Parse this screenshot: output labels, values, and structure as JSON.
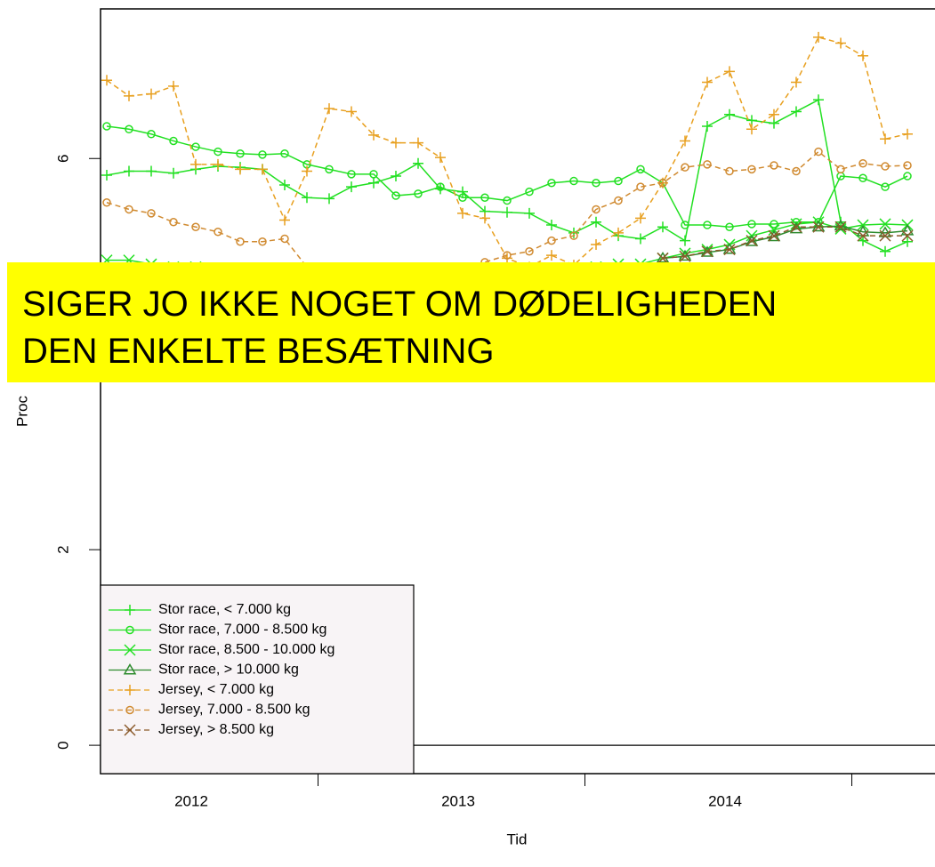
{
  "chart_data": {
    "type": "line",
    "xlabel": "Tid",
    "ylabel": "Proc",
    "annotation": [
      "SIGER JO IKKE NOGET OM DØDELIGHEDEN",
      "DEN ENKELTE BESÆTNING"
    ],
    "categories": [
      null,
      null,
      null,
      null,
      null,
      null,
      null,
      null,
      null,
      null,
      null,
      null,
      null,
      null,
      null,
      null,
      null,
      null,
      null,
      null,
      null,
      null,
      null,
      null,
      null,
      null,
      null,
      null,
      null,
      null,
      null,
      null,
      null,
      null,
      null,
      null,
      null
    ],
    "xtick_labels": [
      "2012",
      "2013",
      "2014"
    ],
    "ylim": [
      -0.29,
      7.53
    ],
    "yticks": [
      0,
      2,
      6
    ],
    "series": [
      {
        "name": "Stor race, < 7.000 kg",
        "color": "#22e022",
        "marker": "plus",
        "linestyle": "solid",
        "values": [
          5.83,
          5.87,
          5.87,
          5.85,
          5.89,
          5.92,
          5.91,
          5.89,
          5.73,
          5.6,
          5.59,
          5.71,
          5.75,
          5.82,
          5.95,
          5.69,
          5.66,
          5.46,
          5.45,
          5.44,
          5.32,
          5.24,
          5.35,
          5.21,
          5.18,
          5.3,
          5.16,
          6.33,
          6.45,
          6.39,
          6.36,
          6.48,
          6.6,
          5.35,
          5.16,
          5.05,
          5.15
        ]
      },
      {
        "name": "Stor race, 7.000 - 8.500 kg",
        "color": "#22e022",
        "marker": "circle",
        "linestyle": "solid",
        "values": [
          6.33,
          6.3,
          6.25,
          6.18,
          6.12,
          6.07,
          6.05,
          6.04,
          6.05,
          5.94,
          5.89,
          5.84,
          5.84,
          5.62,
          5.64,
          5.71,
          5.6,
          5.6,
          5.57,
          5.66,
          5.75,
          5.77,
          5.75,
          5.77,
          5.89,
          5.75,
          5.32,
          5.32,
          5.3,
          5.33,
          5.33,
          5.35,
          5.35,
          5.82,
          5.8,
          5.71,
          5.82
        ]
      },
      {
        "name": "Stor race, 8.500 - 10.000 kg",
        "color": "#22e022",
        "marker": "cross",
        "linestyle": "solid",
        "values": [
          4.96,
          4.96,
          4.92,
          4.89,
          4.89,
          4.87,
          4.85,
          4.82,
          4.8,
          4.75,
          4.73,
          4.71,
          4.69,
          4.66,
          4.66,
          4.69,
          4.71,
          4.73,
          4.75,
          4.76,
          4.8,
          4.85,
          4.89,
          4.92,
          4.92,
          4.98,
          5.03,
          5.07,
          5.12,
          5.21,
          5.27,
          5.33,
          5.35,
          5.28,
          5.32,
          5.33,
          5.32
        ]
      },
      {
        "name": "Stor race, > 10.000 kg",
        "color": "#2e8b2e",
        "marker": "triangle",
        "linestyle": "solid",
        "values": [
          null,
          null,
          null,
          null,
          null,
          null,
          null,
          null,
          null,
          null,
          null,
          null,
          null,
          null,
          null,
          null,
          null,
          null,
          null,
          null,
          null,
          null,
          null,
          null,
          null,
          4.98,
          5.0,
          5.04,
          5.07,
          5.15,
          5.2,
          5.28,
          5.3,
          5.31,
          5.25,
          5.24,
          5.26
        ]
      },
      {
        "name": "Jersey, < 7.000 kg",
        "color": "#e8a020",
        "marker": "plus",
        "linestyle": "dashed",
        "values": [
          6.8,
          6.64,
          6.66,
          6.74,
          5.94,
          5.94,
          5.89,
          5.89,
          5.37,
          5.87,
          6.51,
          6.48,
          6.24,
          6.16,
          6.16,
          6.01,
          5.44,
          5.39,
          4.98,
          4.89,
          5.01,
          4.91,
          5.12,
          5.24,
          5.39,
          5.75,
          6.18,
          6.78,
          6.89,
          6.3,
          6.45,
          6.78,
          7.24,
          7.18,
          7.05,
          6.2,
          6.25
        ]
      },
      {
        "name": "Jersey, 7.000 - 8.500 kg",
        "color": "#d08a30",
        "marker": "circle",
        "linestyle": "dashed",
        "values": [
          5.55,
          5.48,
          5.44,
          5.35,
          5.3,
          5.25,
          5.15,
          5.15,
          5.18,
          4.89,
          4.8,
          4.71,
          4.62,
          4.62,
          4.71,
          4.8,
          4.89,
          4.94,
          5.01,
          5.05,
          5.16,
          5.21,
          5.48,
          5.57,
          5.71,
          5.75,
          5.91,
          5.94,
          5.87,
          5.89,
          5.93,
          5.87,
          6.07,
          5.89,
          5.95,
          5.92,
          5.93
        ]
      },
      {
        "name": "Jersey, > 8.500 kg",
        "color": "#8b5a2b",
        "marker": "cross",
        "linestyle": "dashed",
        "values": [
          null,
          null,
          null,
          null,
          null,
          null,
          null,
          null,
          null,
          null,
          null,
          null,
          null,
          null,
          null,
          null,
          null,
          null,
          null,
          null,
          null,
          null,
          null,
          null,
          null,
          4.98,
          5.0,
          5.05,
          5.07,
          5.16,
          5.21,
          5.3,
          5.3,
          5.3,
          5.21,
          5.21,
          5.21
        ]
      }
    ]
  }
}
